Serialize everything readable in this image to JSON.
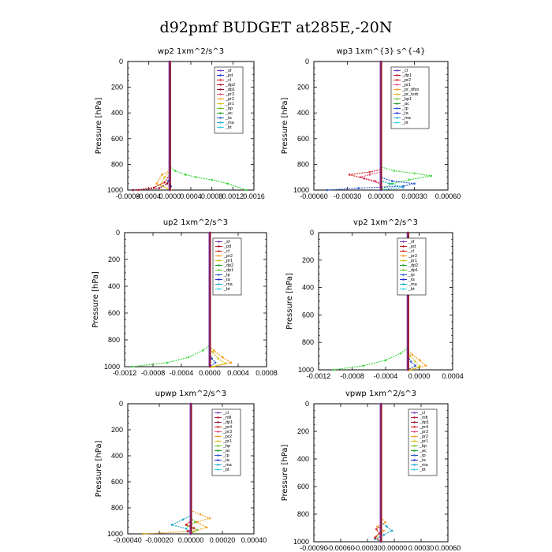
{
  "figure_title": "d92pmf  BUDGET at285E,-20N",
  "chart_data": [
    {
      "type": "line",
      "title": "wp2   1xm^2/s^3",
      "ylabel": "Pressure [hPa]",
      "xlim": [
        -0.0008,
        0.0016
      ],
      "ylim": [
        1000,
        0
      ],
      "xtick_labels": [
        "-0.0008",
        "-0.0004",
        "0.0000",
        "0.0004",
        "0.0008",
        "0.0012",
        "0.0016"
      ],
      "ytick_labels": [
        "0",
        "200",
        "400",
        "600",
        "800",
        "1000"
      ],
      "legend": [
        {
          "name": "_sf",
          "color": "#7a3db8"
        },
        {
          "name": "_pd",
          "color": "#1f2fd1"
        },
        {
          "name": "_cl",
          "color": "#d11f1f"
        },
        {
          "name": "_dp2",
          "color": "#b5122b"
        },
        {
          "name": "_dp1",
          "color": "#8e0f2a"
        },
        {
          "name": "_pr3",
          "color": "#e84a7a"
        },
        {
          "name": "_pr2",
          "color": "#f2a020"
        },
        {
          "name": "_pr1",
          "color": "#d4c21a"
        },
        {
          "name": "_bp",
          "color": "#6ac22a"
        },
        {
          "name": "_ac",
          "color": "#1f9a2a"
        },
        {
          "name": "_ta",
          "color": "#2a5ad1"
        },
        {
          "name": "_ma",
          "color": "#22a9c9"
        },
        {
          "name": "_bt",
          "color": "#3ad4e8"
        }
      ],
      "series": [
        {
          "name": "_bp",
          "color": "#40d840",
          "x": [
            0,
            0,
            0.0001,
            0.0003,
            0.0005,
            0.0008,
            0.0011,
            0.00145
          ],
          "y": [
            0,
            820,
            850,
            880,
            900,
            920,
            950,
            1000
          ]
        },
        {
          "name": "_pr2",
          "color": "#f2a020",
          "x": [
            0,
            0,
            -0.00015,
            -0.00025,
            2e-05
          ],
          "y": [
            0,
            850,
            880,
            950,
            1000
          ]
        },
        {
          "name": "_pr1",
          "color": "#d4c21a",
          "x": [
            0,
            0,
            -0.0001,
            -0.00018,
            1e-05
          ],
          "y": [
            0,
            860,
            900,
            960,
            1000
          ]
        },
        {
          "name": "_cl",
          "color": "#d11f1f",
          "x": [
            0,
            0,
            -0.0001,
            -0.0003,
            -0.0006
          ],
          "y": [
            0,
            880,
            940,
            980,
            1000
          ]
        },
        {
          "name": "_dp1",
          "color": "#8e0f2a",
          "x": [
            0,
            0,
            -5e-05,
            -0.0002,
            -0.0007
          ],
          "y": [
            0,
            900,
            950,
            985,
            1000
          ]
        },
        {
          "name": "_ta",
          "color": "#2a5ad1",
          "x": [
            0,
            0,
            -3e-05,
            2e-05,
            0
          ],
          "y": [
            0,
            900,
            930,
            970,
            1000
          ]
        },
        {
          "name": "_sf",
          "color": "#7a3db8",
          "x": [
            0,
            0
          ],
          "y": [
            0,
            1000
          ]
        }
      ]
    },
    {
      "type": "line",
      "title": "wp3   1xm^{3} s^{-4}",
      "ylabel": "Pressure [hPa]",
      "xlim": [
        -0.0006,
        0.0006
      ],
      "ylim": [
        1000,
        0
      ],
      "xtick_labels": [
        "-0.00060",
        "-0.00030",
        "0.00000",
        "0.00030",
        "0.00060"
      ],
      "ytick_labels": [
        "0",
        "200",
        "400",
        "600",
        "800",
        "1000"
      ],
      "legend": [
        {
          "name": "_cl",
          "color": "#7a3db8"
        },
        {
          "name": "_dp1",
          "color": "#b5122b"
        },
        {
          "name": "_pr2",
          "color": "#d11f1f"
        },
        {
          "name": "_pr1",
          "color": "#e84a7a"
        },
        {
          "name": "_pr_dfsn",
          "color": "#f2a020"
        },
        {
          "name": "_pr_turb",
          "color": "#d4c21a"
        },
        {
          "name": "_bp1",
          "color": "#6ac22a"
        },
        {
          "name": "_ac",
          "color": "#1f9a2a"
        },
        {
          "name": "_tp",
          "color": "#2a5ad1"
        },
        {
          "name": "_ta",
          "color": "#1f2fd1"
        },
        {
          "name": "_ma",
          "color": "#22a9c9"
        },
        {
          "name": "_bt",
          "color": "#3ad4e8"
        }
      ],
      "series": [
        {
          "name": "_ac",
          "color": "#40d840",
          "x": [
            0,
            0,
            0.00012,
            0.0003,
            0.00045,
            0.00025,
            0.0001,
            0
          ],
          "y": [
            0,
            820,
            850,
            870,
            890,
            920,
            950,
            1000
          ]
        },
        {
          "name": "_pr2",
          "color": "#d11f1f",
          "x": [
            0,
            0,
            -0.0001,
            -0.00028,
            -0.00015,
            0
          ],
          "y": [
            0,
            840,
            860,
            880,
            910,
            950
          ]
        },
        {
          "name": "_pr1",
          "color": "#e84a7a",
          "x": [
            0,
            0,
            -0.0001,
            -0.00018,
            -5e-05,
            0
          ],
          "y": [
            0,
            860,
            880,
            900,
            930,
            960
          ]
        },
        {
          "name": "_tp",
          "color": "#2a5ad1",
          "x": [
            0,
            0,
            0.0001,
            0.0003,
            0.0002,
            -0.0002,
            -0.00048
          ],
          "y": [
            0,
            900,
            930,
            950,
            970,
            985,
            1000
          ]
        },
        {
          "name": "_ma",
          "color": "#22a9c9",
          "x": [
            0,
            0,
            8e-05,
            0.0002,
            0
          ],
          "y": [
            0,
            930,
            950,
            980,
            1000
          ]
        },
        {
          "name": "_cl",
          "color": "#7a3db8",
          "x": [
            0,
            0
          ],
          "y": [
            0,
            1000
          ]
        }
      ]
    },
    {
      "type": "line",
      "title": "up2   1xm^2/s^3",
      "ylabel": "Pressure [hPa]",
      "xlim": [
        -0.0012,
        0.0008
      ],
      "ylim": [
        1000,
        0
      ],
      "xtick_labels": [
        "-0.0012",
        "-0.0008",
        "-0.0004",
        "0.0000",
        "0.0004",
        "0.0008"
      ],
      "ytick_labels": [
        "0",
        "200",
        "400",
        "600",
        "800",
        "1000"
      ],
      "legend": [
        {
          "name": "_sf",
          "color": "#7a3db8"
        },
        {
          "name": "_pd",
          "color": "#b5122b"
        },
        {
          "name": "_cl",
          "color": "#d11f1f"
        },
        {
          "name": "_pr2",
          "color": "#f2a020"
        },
        {
          "name": "_pr1",
          "color": "#d4c21a"
        },
        {
          "name": "_dp2",
          "color": "#1f9a2a"
        },
        {
          "name": "_dp1",
          "color": "#6ac22a"
        },
        {
          "name": "_tp",
          "color": "#2a5ad1"
        },
        {
          "name": "_ta",
          "color": "#1f2fd1"
        },
        {
          "name": "_ma",
          "color": "#22a9c9"
        },
        {
          "name": "_bt",
          "color": "#3ad4e8"
        }
      ],
      "series": [
        {
          "name": "_dp1",
          "color": "#40d840",
          "x": [
            0,
            0,
            -0.0001,
            -0.0003,
            -0.0006,
            -0.0011
          ],
          "y": [
            0,
            840,
            880,
            930,
            970,
            1000
          ]
        },
        {
          "name": "_pr2",
          "color": "#f2a020",
          "x": [
            0,
            0,
            6e-05,
            0.00018,
            0.0003,
            5e-05
          ],
          "y": [
            0,
            850,
            880,
            930,
            970,
            1000
          ]
        },
        {
          "name": "_pr1",
          "color": "#d4c21a",
          "x": [
            0,
            0,
            4e-05,
            0.00012,
            0.00022,
            3e-05
          ],
          "y": [
            0,
            860,
            890,
            940,
            975,
            1000
          ]
        },
        {
          "name": "_tp",
          "color": "#2a5ad1",
          "x": [
            0,
            0,
            3e-05,
            8e-05,
            0
          ],
          "y": [
            0,
            900,
            940,
            970,
            1000
          ]
        },
        {
          "name": "_pd",
          "color": "#b5122b",
          "x": [
            0,
            0
          ],
          "y": [
            0,
            1000
          ]
        }
      ]
    },
    {
      "type": "line",
      "title": "vp2   1xm^2/s^3",
      "ylabel": "Pressure [hPa]",
      "xlim": [
        -0.0012,
        0.0006
      ],
      "ylim": [
        1000,
        0
      ],
      "xtick_labels": [
        "-0.0012",
        "-0.0008",
        "-0.0004",
        "0.0000",
        "0.0004"
      ],
      "ytick_labels": [
        "0",
        "200",
        "400",
        "600",
        "800",
        "1000"
      ],
      "legend": [
        {
          "name": "_sf",
          "color": "#7a3db8"
        },
        {
          "name": "_pd",
          "color": "#b5122b"
        },
        {
          "name": "_cl",
          "color": "#d11f1f"
        },
        {
          "name": "_pr2",
          "color": "#f2a020"
        },
        {
          "name": "_pr1",
          "color": "#d4c21a"
        },
        {
          "name": "_dp2",
          "color": "#1f9a2a"
        },
        {
          "name": "_dp1",
          "color": "#6ac22a"
        },
        {
          "name": "_tp",
          "color": "#2a5ad1"
        },
        {
          "name": "_ta",
          "color": "#1f2fd1"
        },
        {
          "name": "_ma",
          "color": "#22a9c9"
        },
        {
          "name": "_bt",
          "color": "#3ad4e8"
        }
      ],
      "series": [
        {
          "name": "_dp1",
          "color": "#40d840",
          "x": [
            0,
            0,
            -0.0001,
            -0.0003,
            -0.0006,
            -0.001
          ],
          "y": [
            0,
            840,
            880,
            930,
            970,
            1000
          ]
        },
        {
          "name": "_pr2",
          "color": "#f2a020",
          "x": [
            0,
            0,
            6e-05,
            0.00016,
            0.00024,
            4e-05
          ],
          "y": [
            0,
            860,
            890,
            930,
            970,
            1000
          ]
        },
        {
          "name": "_pr1",
          "color": "#d4c21a",
          "x": [
            0,
            0,
            3e-05,
            0.0001,
            0.00016,
            2e-05
          ],
          "y": [
            0,
            870,
            900,
            940,
            975,
            1000
          ]
        },
        {
          "name": "_tp",
          "color": "#2a5ad1",
          "x": [
            0,
            0,
            4e-05,
            0.0001,
            0
          ],
          "y": [
            0,
            900,
            940,
            970,
            1000
          ]
        },
        {
          "name": "_pd",
          "color": "#b5122b",
          "x": [
            0,
            0
          ],
          "y": [
            0,
            1000
          ]
        }
      ]
    },
    {
      "type": "line",
      "title": "upwp   1xm^2/s^3",
      "ylabel": "Pressure [hPa]",
      "xlim": [
        -0.0004,
        0.0004
      ],
      "ylim": [
        1000,
        0
      ],
      "xtick_labels": [
        "-0.00040",
        "-0.00020",
        "0.00000",
        "0.00020",
        "0.00040"
      ],
      "ytick_labels": [
        "0",
        "200",
        "400",
        "600",
        "800",
        "1000"
      ],
      "legend": [
        {
          "name": "_cl",
          "color": "#7a3db8"
        },
        {
          "name": "_mfl",
          "color": "#b5122b"
        },
        {
          "name": "_dp1",
          "color": "#8e0f2a"
        },
        {
          "name": "_pr4",
          "color": "#d11f1f"
        },
        {
          "name": "_pr3",
          "color": "#e84a7a"
        },
        {
          "name": "_pr2",
          "color": "#f2a020"
        },
        {
          "name": "_pr1",
          "color": "#d4c21a"
        },
        {
          "name": "_bp",
          "color": "#6ac22a"
        },
        {
          "name": "_ac",
          "color": "#1f9a2a"
        },
        {
          "name": "_tp",
          "color": "#2a5ad1"
        },
        {
          "name": "_ta",
          "color": "#1f2fd1"
        },
        {
          "name": "_ma",
          "color": "#22a9c9"
        },
        {
          "name": "_bt",
          "color": "#3ad4e8"
        }
      ],
      "series": [
        {
          "name": "_pr2",
          "color": "#f2a020",
          "x": [
            0,
            0,
            6e-05,
            0.00012,
            4e-05,
            0.0001,
            2e-05,
            -0.0003
          ],
          "y": [
            0,
            820,
            850,
            880,
            910,
            950,
            980,
            1000
          ]
        },
        {
          "name": "_ma",
          "color": "#22a9c9",
          "x": [
            0,
            0,
            -5e-05,
            -0.00012,
            -3e-05,
            0
          ],
          "y": [
            0,
            860,
            890,
            930,
            960,
            1000
          ]
        },
        {
          "name": "_bp",
          "color": "#6ac22a",
          "x": [
            0,
            0,
            3e-05,
            -2e-05,
            4e-05,
            0
          ],
          "y": [
            0,
            880,
            910,
            940,
            970,
            1000
          ]
        },
        {
          "name": "_pr4",
          "color": "#d11f1f",
          "x": [
            0,
            0,
            -3e-05,
            2e-05,
            -2e-05,
            0
          ],
          "y": [
            0,
            900,
            930,
            955,
            980,
            1000
          ]
        },
        {
          "name": "_cl",
          "color": "#7a3db8",
          "x": [
            0,
            0
          ],
          "y": [
            0,
            1000
          ]
        }
      ]
    },
    {
      "type": "line",
      "title": "vpwp   1xm^2/s^3",
      "ylabel": "Pressure [hPa]",
      "xlim": [
        -0.0009,
        0.0009
      ],
      "ylim": [
        1000,
        0
      ],
      "xtick_labels": [
        "-0.00090",
        "-0.00060",
        "-0.00030",
        "0.00000",
        "0.00030",
        "0.00060"
      ],
      "ytick_labels": [
        "0",
        "200",
        "400",
        "600",
        "800",
        "1000"
      ],
      "legend": [
        {
          "name": "_cl",
          "color": "#7a3db8"
        },
        {
          "name": "_mfl",
          "color": "#b5122b"
        },
        {
          "name": "_dp1",
          "color": "#8e0f2a"
        },
        {
          "name": "_pr4",
          "color": "#d11f1f"
        },
        {
          "name": "_pr3",
          "color": "#e84a7a"
        },
        {
          "name": "_pr2",
          "color": "#f2a020"
        },
        {
          "name": "_pr1",
          "color": "#d4c21a"
        },
        {
          "name": "_bp",
          "color": "#6ac22a"
        },
        {
          "name": "_ac",
          "color": "#1f9a2a"
        },
        {
          "name": "_tp",
          "color": "#2a5ad1"
        },
        {
          "name": "_ta",
          "color": "#1f2fd1"
        },
        {
          "name": "_ma",
          "color": "#22a9c9"
        },
        {
          "name": "_bt",
          "color": "#3ad4e8"
        }
      ],
      "series": [
        {
          "name": "_pr2",
          "color": "#f2a020",
          "x": [
            0,
            0,
            6e-05,
            -5e-05,
            4e-05,
            -6e-05,
            0
          ],
          "y": [
            0,
            820,
            860,
            890,
            920,
            960,
            1000
          ]
        },
        {
          "name": "_ma",
          "color": "#22a9c9",
          "x": [
            0,
            0,
            8e-05,
            0.00015,
            4e-05,
            -8e-05,
            0
          ],
          "y": [
            0,
            860,
            890,
            920,
            950,
            980,
            1000
          ]
        },
        {
          "name": "_pr4",
          "color": "#d11f1f",
          "x": [
            0,
            0,
            -6e-05,
            -2e-05,
            -8e-05,
            0
          ],
          "y": [
            0,
            880,
            910,
            940,
            970,
            1000
          ]
        },
        {
          "name": "_cl",
          "color": "#7a3db8",
          "x": [
            0,
            0
          ],
          "y": [
            0,
            1000
          ]
        }
      ]
    }
  ]
}
